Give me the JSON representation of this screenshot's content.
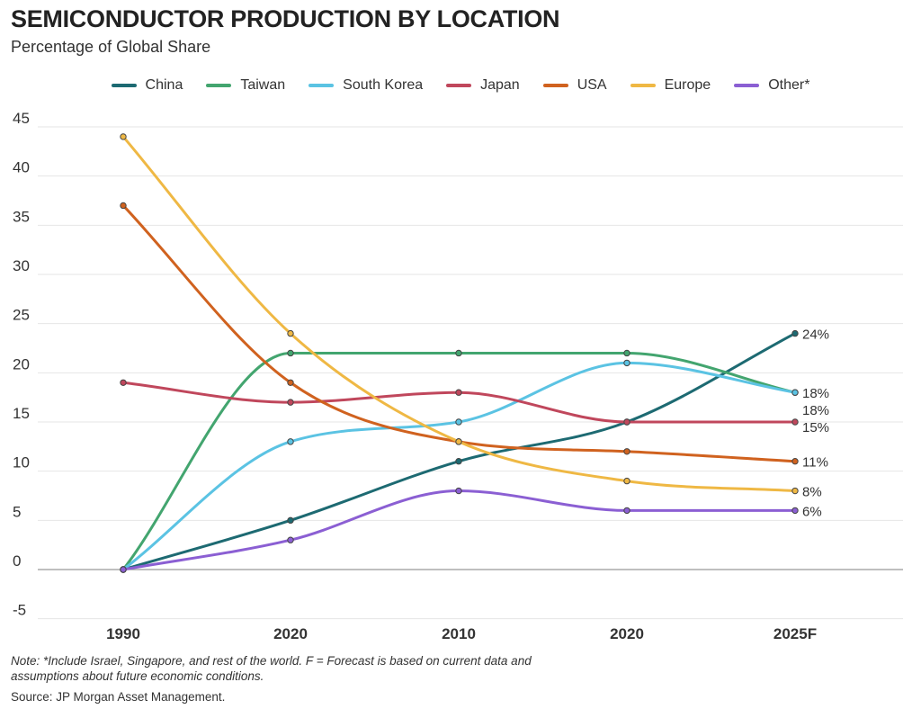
{
  "header": {
    "title": "SEMICONDUCTOR PRODUCTION BY LOCATION",
    "subtitle": "Percentage of Global Share"
  },
  "footer": {
    "note": "Note: *Include Israel, Singapore, and rest of the world. F = Forecast is based on current data and assumptions about future economic conditions.",
    "source": "Source: JP Morgan Asset Management."
  },
  "chart_data": {
    "type": "line",
    "title": "SEMICONDUCTOR PRODUCTION BY LOCATION",
    "subtitle": "Percentage of Global Share",
    "categories": [
      "1990",
      "2020",
      "2010",
      "2020",
      "2025F"
    ],
    "ylim": [
      -5,
      45
    ],
    "yticks": [
      45,
      40,
      35,
      30,
      25,
      20,
      15,
      10,
      5,
      0,
      -5
    ],
    "grid": true,
    "legend_position": "top",
    "series": [
      {
        "name": "China",
        "color": "#1d6a72",
        "values": [
          0,
          5,
          11,
          15,
          24
        ],
        "end_label": "24%"
      },
      {
        "name": "Taiwan",
        "color": "#43a56f",
        "values": [
          0,
          22,
          22,
          22,
          18
        ],
        "end_label": "18%"
      },
      {
        "name": "South Korea",
        "color": "#5bc3e3",
        "values": [
          0,
          13,
          15,
          21,
          18
        ],
        "end_label": "18%"
      },
      {
        "name": "Japan",
        "color": "#c0475c",
        "values": [
          19,
          17,
          18,
          15,
          15
        ],
        "end_label": "15%"
      },
      {
        "name": "USA",
        "color": "#d0621f",
        "values": [
          37,
          19,
          13,
          12,
          11
        ],
        "end_label": "11%"
      },
      {
        "name": "Europe",
        "color": "#efb844",
        "values": [
          44,
          24,
          13,
          9,
          8
        ],
        "end_label": "8%"
      },
      {
        "name": "Other*",
        "color": "#8b5fd3",
        "values": [
          0,
          3,
          8,
          6,
          6
        ],
        "end_label": "6%"
      }
    ]
  }
}
